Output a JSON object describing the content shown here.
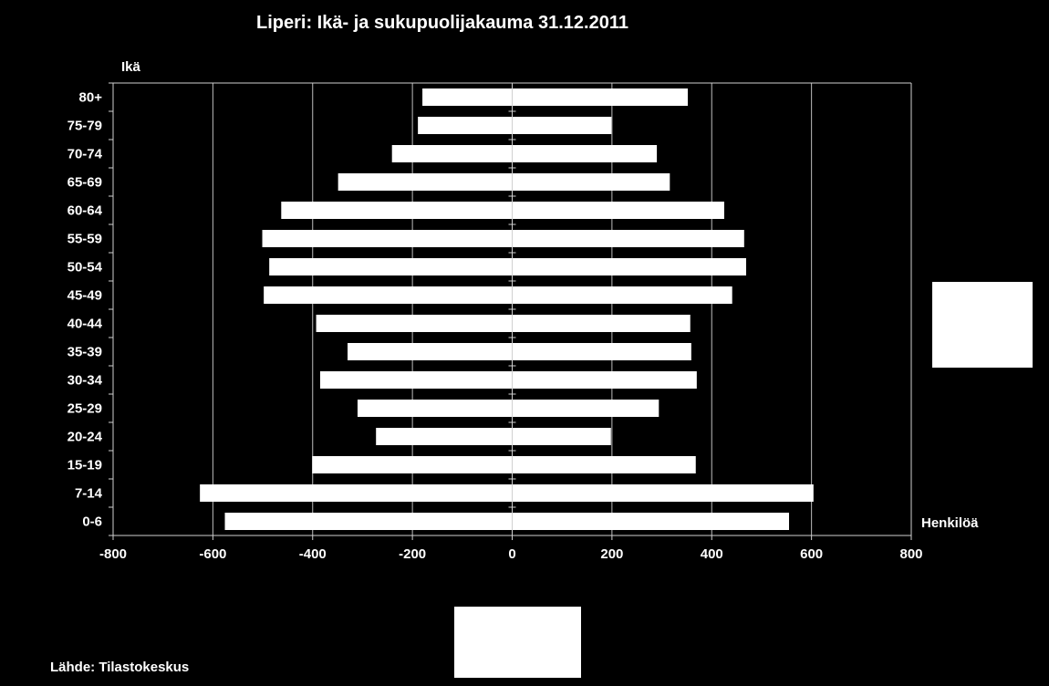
{
  "chart_data": {
    "type": "bar",
    "orientation": "horizontal",
    "title": "Liperi: Ikä- ja sukupuolijakauma 31.12.2011",
    "ylabel": "Ikä",
    "xlabel": "Henkilöä",
    "categories": [
      "0-6",
      "7-14",
      "15-19",
      "20-24",
      "25-29",
      "30-34",
      "35-39",
      "40-44",
      "45-49",
      "50-54",
      "55-59",
      "60-64",
      "65-69",
      "70-74",
      "75-79",
      "80+"
    ],
    "series": [
      {
        "values": [
          -576,
          -626,
          -401,
          -273,
          -310,
          -385,
          -330,
          -393,
          -498,
          -487,
          -501,
          -463,
          -349,
          -241,
          -189,
          -180
        ]
      },
      {
        "values": [
          555,
          604,
          368,
          198,
          294,
          370,
          359,
          357,
          441,
          469,
          465,
          425,
          316,
          290,
          199,
          352
        ]
      }
    ],
    "xlim": [
      -800,
      800
    ],
    "xticks": [
      "-800",
      "-600",
      "-400",
      "-200",
      "0",
      "200",
      "400",
      "600",
      "800"
    ],
    "grid": true,
    "legend": "right",
    "colors": {
      "background": "#000000",
      "bars": "#ffffff",
      "text": "#ffffff"
    }
  },
  "source": "Lähde: Tilastokeskus"
}
